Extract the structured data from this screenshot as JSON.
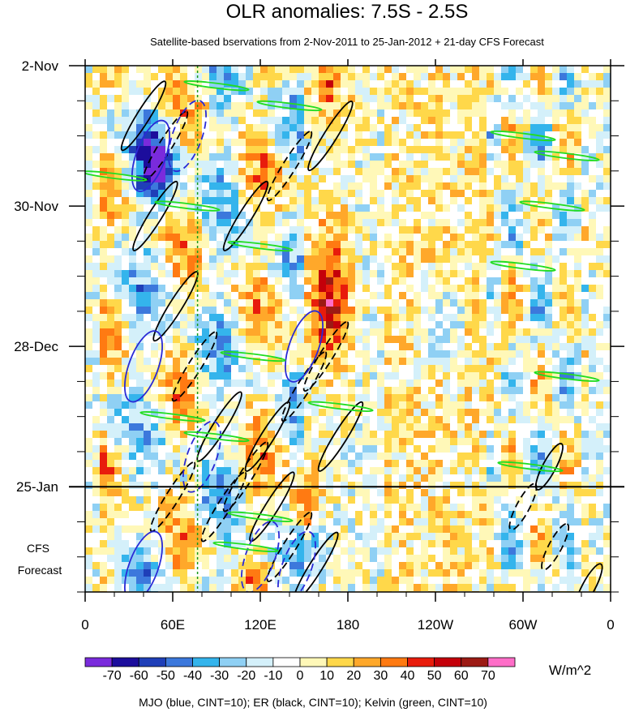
{
  "chart_data": {
    "type": "heatmap",
    "title": "OLR anomalies: 7.5S - 2.5S",
    "subtitle": "Satellite-based bservations from 2-Nov-2011 to 25-Jan-2012 + 21-day CFS Forecast",
    "x_tick_labels": [
      "0",
      "60E",
      "120E",
      "180",
      "120W",
      "60W",
      "0"
    ],
    "x_ticks_deg_east": [
      0,
      60,
      120,
      180,
      240,
      300,
      360
    ],
    "xlim": [
      0,
      360
    ],
    "y_tick_labels": [
      "2-Nov",
      "30-Nov",
      "28-Dec",
      "25-Jan"
    ],
    "y_ticks_day_index": [
      0,
      28,
      56,
      84
    ],
    "ylim_days": [
      0,
      105
    ],
    "y_reversed": true,
    "forecast_start_label": "25-Jan",
    "forecast_start_day": 84,
    "forecast_label": [
      "CFS",
      "Forecast"
    ],
    "colorbar": {
      "labels": [
        "-70",
        "-60",
        "-50",
        "-40",
        "-30",
        "-20",
        "-10",
        "0",
        "10",
        "20",
        "30",
        "40",
        "50",
        "60",
        "70"
      ],
      "levels": [
        -70,
        -60,
        -50,
        -40,
        -30,
        -20,
        -10,
        0,
        10,
        20,
        30,
        40,
        50,
        60,
        70
      ],
      "colors": [
        "#7a2bdc",
        "#1c0d9c",
        "#1f3fb8",
        "#3c78dc",
        "#34b4ec",
        "#8fd0f4",
        "#d4f0fa",
        "#ffffff",
        "#fff8b8",
        "#ffd84a",
        "#ffa82a",
        "#ff7a12",
        "#e81c0c",
        "#c4000a",
        "#9c1a14",
        "#ff6ec8"
      ],
      "units": "W/m^2"
    },
    "contours_footer": "MJO (blue, CINT=10); ER (black, CINT=10); Kelvin (green, CINT=10)",
    "contour_colors": {
      "mjo": "#2a2ad6",
      "er": "#000000",
      "kelvin": "#22dd22"
    }
  }
}
